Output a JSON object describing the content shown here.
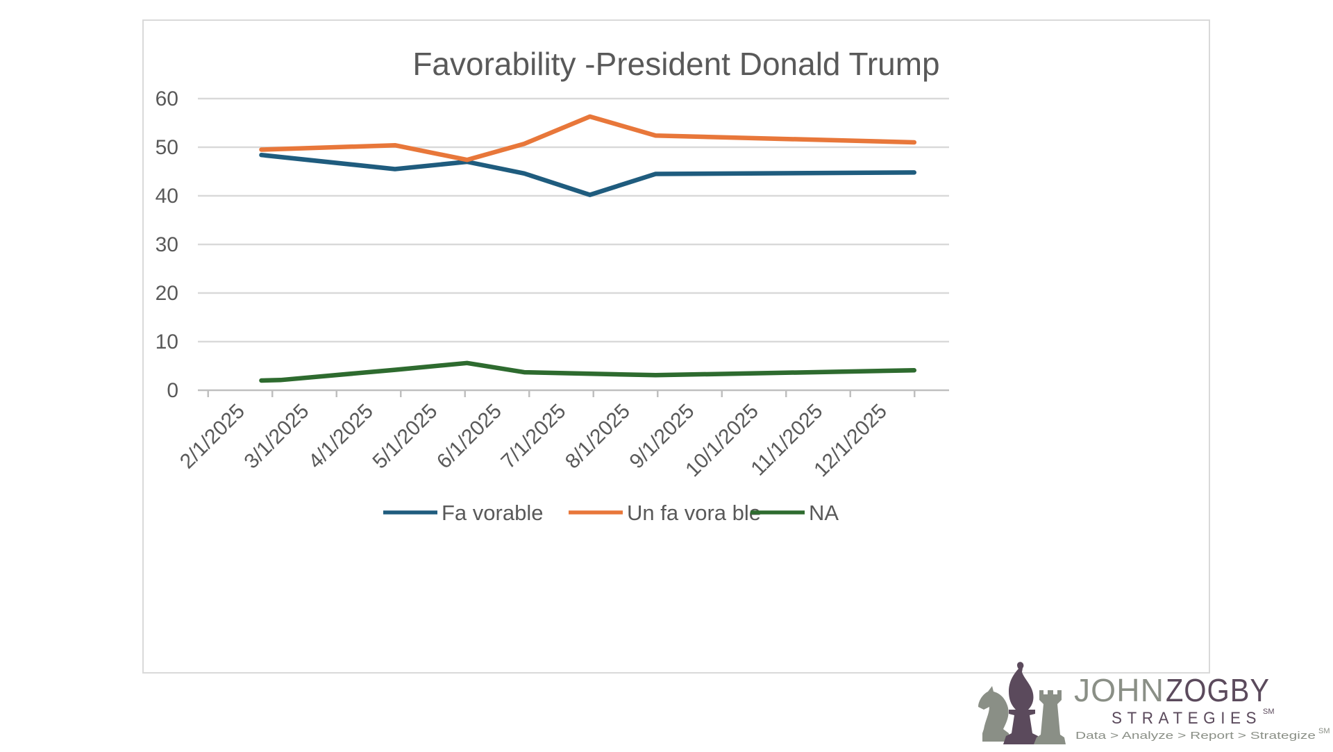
{
  "chart_data": {
    "type": "line",
    "title": "Favorability -President Donald Trump",
    "categories": [
      "2/1/2025",
      "3/1/2025",
      "4/1/2025",
      "5/1/2025",
      "6/1/2025",
      "7/1/2025",
      "8/1/2025",
      "9/1/2025",
      "10/1/2025",
      "11/1/2025",
      "12/1/2025"
    ],
    "y_ticks": [
      0,
      10,
      20,
      30,
      40,
      50,
      60
    ],
    "ylim": [
      0,
      60
    ],
    "grid": true,
    "legend_position": "bottom",
    "series": [
      {
        "name": "Fa vorable",
        "color": "#1f5c7e",
        "points": [
          {
            "x": "2/11/2025",
            "y": 48.4
          },
          {
            "x": "4/15/2025",
            "y": 45.5
          },
          {
            "x": "5/19/2025",
            "y": 47.0
          },
          {
            "x": "6/15/2025",
            "y": 44.6
          },
          {
            "x": "7/16/2025",
            "y": 40.2
          },
          {
            "x": "8/16/2025",
            "y": 44.5
          },
          {
            "x": "12/16/2025",
            "y": 44.8
          }
        ]
      },
      {
        "name": "Un fa vora ble",
        "color": "#e8773a",
        "points": [
          {
            "x": "2/11/2025",
            "y": 49.5
          },
          {
            "x": "4/15/2025",
            "y": 50.4
          },
          {
            "x": "5/19/2025",
            "y": 47.4
          },
          {
            "x": "6/15/2025",
            "y": 50.7
          },
          {
            "x": "7/16/2025",
            "y": 56.3
          },
          {
            "x": "8/16/2025",
            "y": 52.4
          },
          {
            "x": "12/16/2025",
            "y": 51.0
          }
        ]
      },
      {
        "name": "NA",
        "color": "#2e6b2f",
        "points": [
          {
            "x": "2/11/2025",
            "y": 2.0
          },
          {
            "x": "2/20/2025",
            "y": 2.1
          },
          {
            "x": "4/15/2025",
            "y": 4.2
          },
          {
            "x": "5/19/2025",
            "y": 5.6
          },
          {
            "x": "6/15/2025",
            "y": 3.7
          },
          {
            "x": "8/16/2025",
            "y": 3.1
          },
          {
            "x": "12/16/2025",
            "y": 4.1
          }
        ]
      }
    ]
  },
  "logo": {
    "john": "JOHN",
    "zogby": "ZOGBY",
    "strategies": "STRATEGIES",
    "sm": "SM",
    "tagline": "Data > Analyze > Report > Strategize",
    "tagline_sm": "SM",
    "colors": {
      "gray": "#8a8f86",
      "purple": "#5b4a5c"
    }
  }
}
